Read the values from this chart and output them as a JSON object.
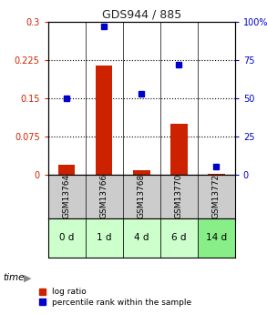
{
  "title": "GDS944 / 885",
  "categories": [
    "GSM13764",
    "GSM13766",
    "GSM13768",
    "GSM13770",
    "GSM13772"
  ],
  "time_labels": [
    "0 d",
    "1 d",
    "4 d",
    "6 d",
    "14 d"
  ],
  "log_ratio": [
    0.02,
    0.215,
    0.008,
    0.1,
    0.002
  ],
  "percentile": [
    50,
    97,
    53,
    72,
    5
  ],
  "left_yticks": [
    0,
    0.075,
    0.15,
    0.225,
    0.3
  ],
  "right_yticks": [
    0,
    25,
    50,
    75,
    100
  ],
  "bar_color": "#cc2200",
  "point_color": "#0000cc",
  "bg_color": "#ffffff",
  "gsm_bg": "#cccccc",
  "time_bg_light": "#ccffcc",
  "time_bg_dark": "#88ee88",
  "title_color": "#222222",
  "left_axis_color": "#cc2200",
  "right_axis_color": "#0000cc",
  "ylim_left": [
    0,
    0.3
  ],
  "ylim_right": [
    0,
    100
  ],
  "legend_log_ratio": "log ratio",
  "legend_percentile": "percentile rank within the sample"
}
